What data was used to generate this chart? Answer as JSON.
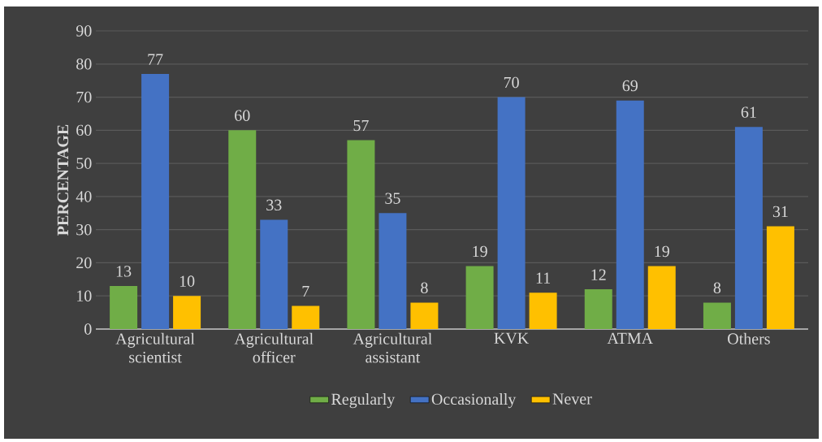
{
  "chart_data": {
    "type": "bar",
    "ylabel": "PERCENTAGE",
    "categories": [
      "Agricultural scientist",
      "Agricultural officer",
      "Agricultural assistant",
      "KVK",
      "ATMA",
      "Others"
    ],
    "series": [
      {
        "name": "Regularly",
        "color": "#70ad47",
        "values": [
          13,
          60,
          57,
          19,
          12,
          8
        ]
      },
      {
        "name": "Occasionally",
        "color": "#4472c4",
        "values": [
          77,
          33,
          35,
          70,
          69,
          61
        ]
      },
      {
        "name": "Never",
        "color": "#ffc000",
        "values": [
          10,
          7,
          8,
          11,
          19,
          31
        ]
      }
    ],
    "ylim": [
      0,
      90
    ],
    "yticks": [
      0,
      10,
      20,
      30,
      40,
      50,
      60,
      70,
      80,
      90
    ],
    "grid": "y",
    "legend": "bottom",
    "data_labels": true
  }
}
